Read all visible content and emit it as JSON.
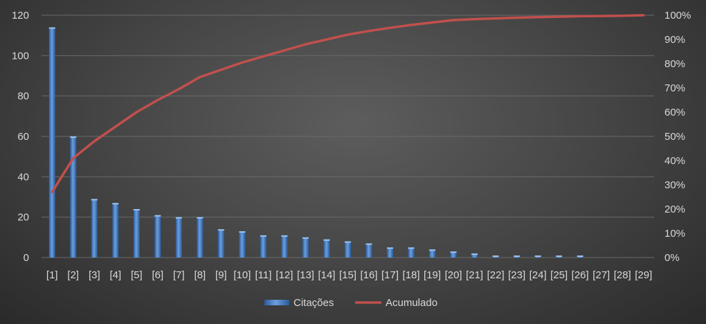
{
  "chart_data": {
    "type": "bar",
    "categories": [
      "[1]",
      "[2]",
      "[3]",
      "[4]",
      "[5]",
      "[6]",
      "[7]",
      "[8]",
      "[9]",
      "[10]",
      "[11]",
      "[12]",
      "[13]",
      "[14]",
      "[15]",
      "[16]",
      "[17]",
      "[18]",
      "[19]",
      "[20]",
      "[21]",
      "[22]",
      "[23]",
      "[24]",
      "[25]",
      "[26]",
      "[27]",
      "[28]",
      "[29]"
    ],
    "series": [
      {
        "name": "Citações",
        "kind": "bar",
        "axis": "left",
        "color": "#4f81bd",
        "values": [
          114,
          60,
          29,
          27,
          24,
          21,
          20,
          20,
          14,
          13,
          11,
          11,
          10,
          9,
          8,
          7,
          5,
          5,
          4,
          3,
          2,
          1,
          1,
          1,
          1,
          1,
          0,
          0,
          0
        ]
      },
      {
        "name": "Acumulado",
        "kind": "line",
        "axis": "right",
        "color": "#c0504d",
        "values": [
          27,
          41,
          48,
          54,
          60,
          65,
          69.5,
          74.5,
          77.5,
          80.5,
          83,
          85.5,
          88,
          90,
          92,
          93.5,
          94.8,
          96,
          97,
          98,
          98.4,
          98.7,
          99,
          99.2,
          99.4,
          99.6,
          99.7,
          99.8,
          100
        ]
      }
    ],
    "y_left": {
      "ylim": [
        0,
        120
      ],
      "ticks": [
        "0",
        "20",
        "40",
        "60",
        "80",
        "100",
        "120"
      ]
    },
    "y_right": {
      "ylim": [
        0,
        100
      ],
      "ticks": [
        "0%",
        "10%",
        "20%",
        "30%",
        "40%",
        "50%",
        "60%",
        "70%",
        "80%",
        "90%",
        "100%"
      ]
    },
    "grid": true,
    "legend_position": "bottom-center",
    "legend": [
      {
        "label": "Citações",
        "color": "#4f81bd"
      },
      {
        "label": "Acumulado",
        "color": "#c0504d"
      }
    ]
  }
}
